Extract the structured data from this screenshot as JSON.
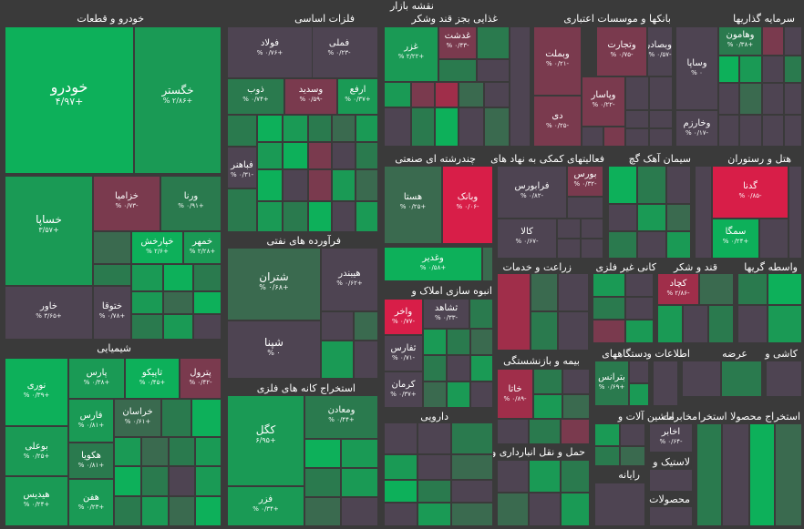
{
  "title": "نقشه بازار",
  "sectors": {
    "auto": "خودرو و قطعات",
    "metals": "فلزات اساسی",
    "food": "غذایی بجز قند وشکر",
    "banks": "بانکها و موسسات اعتباری",
    "investment": "سرمایه گذاریها",
    "multi": "چندرشته ای صنعتی",
    "support": "فعالیتهای کمکی به نهاد های",
    "cement": "سیمان آهک گچ",
    "hotel": "هتل و رستوران",
    "oil": "فرآورده های نفتی",
    "chemical": "شیمیایی",
    "agri": "زراعت و خدمات",
    "mass": "انبوه سازی املاک و",
    "nonmetal": "کانی غیر فلزی",
    "sugar": "قند و شکر",
    "brokers": "واسطه گریها",
    "mining": "استخراج کانه های فلزی",
    "insurance": "بیمه و بازنشستگی",
    "devices": "دستگاههای",
    "info": "اطلاعات و",
    "supply": "عرضه",
    "tile": "کاشی و",
    "pharma": "دارویی",
    "machinery": "ماشین آلات و",
    "telecom": "مخابرات",
    "extract": "استخراج محصولا استخرا",
    "transport": "حمل و نقل انبارداری و",
    "computer": "رایانه",
    "plastic": "لاستیک و",
    "products": "محصولات"
  },
  "tiles": {
    "khodro": {
      "name": "خودرو",
      "change": "+۴/۹۷"
    },
    "khgostar": {
      "name": "خگستر",
      "change": "+۲/۸۶ %"
    },
    "khsapa": {
      "name": "خساپا",
      "change": "+۳/۵۷"
    },
    "khazamia": {
      "name": "خزامیا",
      "change": "-۰/۷۳ %"
    },
    "vorna": {
      "name": "ورنا",
      "change": "+۰/۹۱ %"
    },
    "khporkhash": {
      "name": "خپارخش",
      "change": "+۲/۶ %"
    },
    "khmehr": {
      "name": "خمهر",
      "change": "+۲/۲۸ %"
    },
    "khavar": {
      "name": "خاور",
      "change": "+۳/۶۵ %"
    },
    "khtoqa": {
      "name": "ختوقا",
      "change": "+۰/۷۸ %"
    },
    "fameli": {
      "name": "فملی",
      "change": "-۰/۲۳ %"
    },
    "foolad": {
      "name": "فولاد",
      "change": "+۰/۷۶ %"
    },
    "zob": {
      "name": "ذوب",
      "change": "+۰/۷۴ %"
    },
    "vasadid": {
      "name": "وسدید",
      "change": "-۰/۵۹ %"
    },
    "arfa": {
      "name": "ارفع",
      "change": "+۰/۳۷ %"
    },
    "fabahar": {
      "name": "فباهنر",
      "change": "-۰/۳۱ %"
    },
    "ghazar": {
      "name": "غزر",
      "change": "+۲/۲۲ %"
    },
    "ghedasht": {
      "name": "غدشت",
      "change": "-۰/۴۳ %"
    },
    "vabsader": {
      "name": "وبصادر",
      "change": "-۰/۵۷ %"
    },
    "vtejarat": {
      "name": "وتجارت",
      "change": "-۰/۷۵ %"
    },
    "vbmelat": {
      "name": "وبملت",
      "change": "-۰/۲۱ %"
    },
    "vpasar": {
      "name": "وپاسار",
      "change": "-۰/۲۲ %"
    },
    "di": {
      "name": "دی",
      "change": "-۰/۲۵ %"
    },
    "vahamon": {
      "name": "وهامون",
      "change": "+۰/۳۸ %"
    },
    "vsapa": {
      "name": "وساپا",
      "change": "۰ %"
    },
    "vkharazm": {
      "name": "وخارزم",
      "change": "-۰/۱۷ %"
    },
    "hasta": {
      "name": "هستا",
      "change": "+۰/۲۵ %"
    },
    "vbank": {
      "name": "وبانک",
      "change": "-۰/۰۶ %"
    },
    "vghadir": {
      "name": "وغدیر",
      "change": "+۰/۵۸ %"
    },
    "faraboors": {
      "name": "فرابورس",
      "change": "-۰/۸۲ %"
    },
    "boors": {
      "name": "بورس",
      "change": "-۰/۳۲ %"
    },
    "kala": {
      "name": "کالا",
      "change": "-۰/۶۷ %"
    },
    "gadna": {
      "name": "گدنا",
      "change": "-۰/۸۵ %"
    },
    "semga": {
      "name": "سمگا",
      "change": "+۰/۲۴ %"
    },
    "shetran": {
      "name": "شتران",
      "change": "+۰/۶۸ %"
    },
    "heybandar": {
      "name": "هیبندر",
      "change": "+۰/۶۲ %"
    },
    "shepna": {
      "name": "شپنا",
      "change": "۰ %"
    },
    "vakhar": {
      "name": "واخر",
      "change": "-۰/۷۷ %"
    },
    "tashad": {
      "name": "ثشاهد",
      "change": "-۰/۳۳ %"
    },
    "tefars": {
      "name": "ثفارس",
      "change": "-۰/۷۱ %"
    },
    "kerman": {
      "name": "کرمان",
      "change": "+۰/۳۷ %"
    },
    "kachad": {
      "name": "کچاد",
      "change": "-۲/۸۶ %"
    },
    "noori": {
      "name": "نوری",
      "change": "+۰/۳۹ %"
    },
    "pars": {
      "name": "پارس",
      "change": "+۰/۳۸ %"
    },
    "tapiko": {
      "name": "تاپیکو",
      "change": "+۰/۴۵ %"
    },
    "petrol": {
      "name": "پترول",
      "change": "-۰/۴۲ %"
    },
    "khorasan": {
      "name": "خراسان",
      "change": "+۰/۶۱ %"
    },
    "fars": {
      "name": "فارس",
      "change": "+۰/۸۱ %"
    },
    "boali": {
      "name": "بوعلی",
      "change": "+۰/۲۵ %"
    },
    "hakoya": {
      "name": "هکویا",
      "change": "+۰/۸۱ %"
    },
    "hidis": {
      "name": "هیدیس",
      "change": "+۰/۲۴ %"
    },
    "hahan": {
      "name": "هفن",
      "change": "+۰/۲۳ %"
    },
    "kagol": {
      "name": "کگل",
      "change": "+۶/۹۵"
    },
    "vmaaden": {
      "name": "ومعادن",
      "change": "+۰/۴۴ %"
    },
    "fazar": {
      "name": "فزر",
      "change": "+۰/۳۴ %"
    },
    "hatab": {
      "name": "خاتا",
      "change": "-۰/۸۹ %"
    },
    "btranes": {
      "name": "بترانس",
      "change": "+۰/۶۹ %"
    },
    "akhaber": {
      "name": "اخابر",
      "change": "-۰/۶۴ %"
    }
  }
}
